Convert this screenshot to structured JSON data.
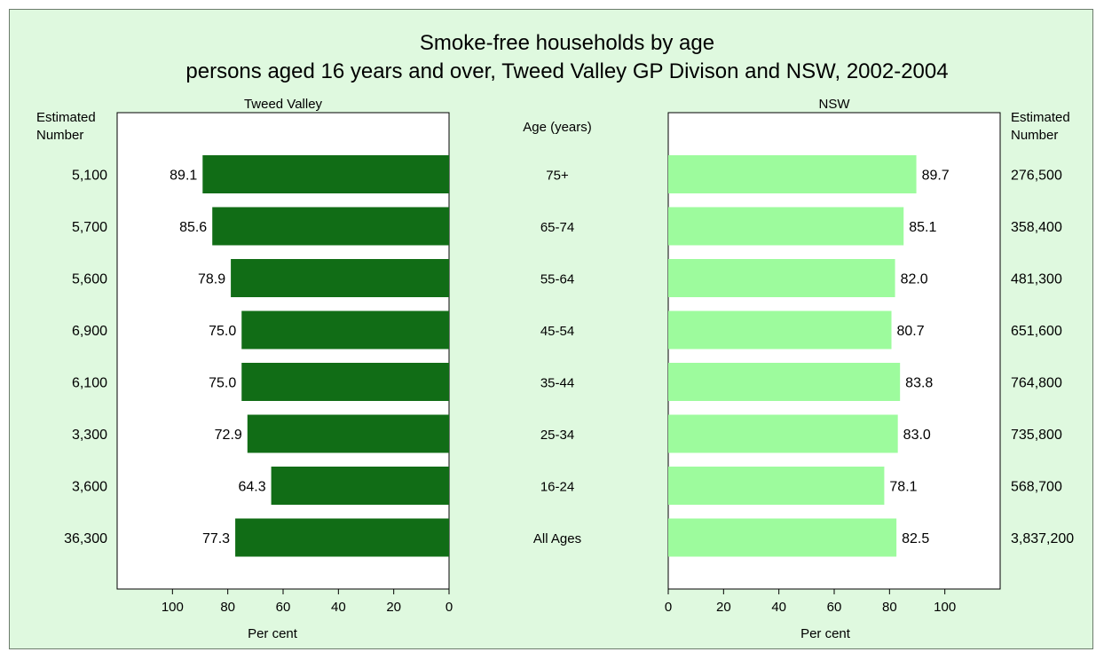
{
  "chart_data": {
    "type": "bar",
    "title": "Smoke-free households by age",
    "subtitle": "persons aged 16 years and over, Tweed Valley GP Divison and NSW, 2002-2004",
    "category_label": "Age (years)",
    "categories": [
      "75+",
      "65-74",
      "55-64",
      "45-54",
      "35-44",
      "25-34",
      "16-24",
      "All Ages"
    ],
    "xlabel": "Per cent",
    "xlim": [
      0,
      120
    ],
    "xticks": [
      0,
      20,
      40,
      60,
      80,
      100
    ],
    "estimated_header": "Estimated\nNumber",
    "panels": [
      {
        "name": "Tweed Valley",
        "direction": "leftward",
        "color": "#116d16",
        "values": [
          89.1,
          85.6,
          78.9,
          75.0,
          75.0,
          72.9,
          64.3,
          77.3
        ],
        "value_labels": [
          "89.1",
          "85.6",
          "78.9",
          "75.0",
          "75.0",
          "72.9",
          "64.3",
          "77.3"
        ],
        "estimated_numbers": [
          "5,100",
          "5,700",
          "5,600",
          "6,900",
          "6,100",
          "3,300",
          "3,600",
          "36,300"
        ]
      },
      {
        "name": "NSW",
        "direction": "rightward",
        "color": "#9dfb9d",
        "values": [
          89.7,
          85.1,
          82.0,
          80.7,
          83.8,
          83.0,
          78.1,
          82.5
        ],
        "value_labels": [
          "89.7",
          "85.1",
          "82.0",
          "80.7",
          "83.8",
          "83.0",
          "78.1",
          "82.5"
        ],
        "estimated_numbers": [
          "276,500",
          "358,400",
          "481,300",
          "651,600",
          "764,800",
          "735,800",
          "568,700",
          "3,837,200"
        ]
      }
    ]
  }
}
